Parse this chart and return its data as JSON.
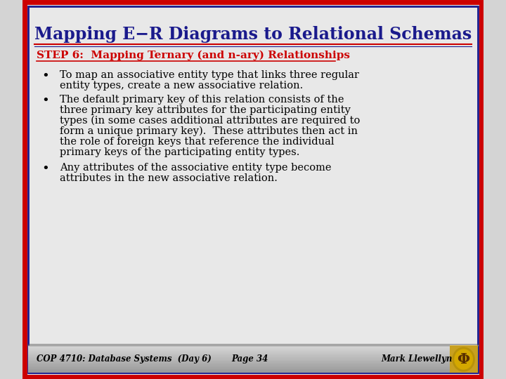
{
  "title": "Mapping E−R Diagrams to Relational Schemas",
  "title_color": "#1a1a8c",
  "step_label": "STEP 6:  Mapping Ternary (and n-ary) Relationships",
  "step_color": "#cc0000",
  "bullet1_line1": "To map an associative entity type that links three regular",
  "bullet1_line2": "entity types, create a new associative relation.",
  "bullet2_line1": "The default primary key of this relation consists of the",
  "bullet2_line2": "three primary key attributes for the participating entity",
  "bullet2_line3": "types (in some cases additional attributes are required to",
  "bullet2_line4": "form a unique primary key).  These attributes then act in",
  "bullet2_line5": "the role of foreign keys that reference the individual",
  "bullet2_line6": "primary keys of the participating entity types.",
  "bullet3_line1": "Any attributes of the associative entity type become",
  "bullet3_line2": "attributes in the new associative relation.",
  "footer_left": "COP 4710: Database Systems  (Day 6)",
  "footer_center": "Page 34",
  "footer_right": "Mark Llewellyn",
  "bg_color": "#d4d4d4",
  "slide_bg": "#e8e8e8",
  "border_outer": "#cc0000",
  "border_inner": "#1a1a8c",
  "footer_bg": "#b8b8b8",
  "text_color": "#000000",
  "font_family": "serif"
}
